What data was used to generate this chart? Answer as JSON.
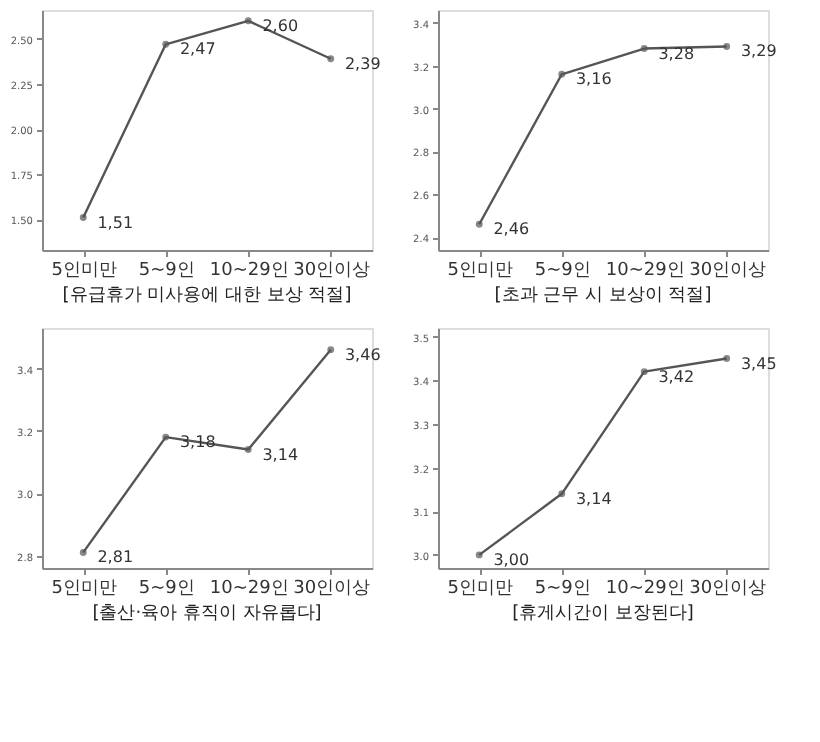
{
  "chart_data": [
    {
      "type": "line",
      "title": "[유급휴가 미사용에 대한 보상 적절]",
      "categories": [
        "5인미만",
        "5~9인",
        "10~29인",
        "30인이상"
      ],
      "color": "#555555",
      "marker": "circle",
      "grid": false,
      "values": [
        1.51,
        2.47,
        2.6,
        2.39
      ],
      "value_labels": [
        "1,51",
        "2,47",
        "2,60",
        "2,39"
      ],
      "ylim": [
        1.33,
        2.66
      ],
      "yticks": [
        {
          "value": 1.5,
          "label": "1.50"
        },
        {
          "value": 1.75,
          "label": "1.75"
        },
        {
          "value": 2.0,
          "label": "2.00"
        },
        {
          "value": 2.25,
          "label": "2.25"
        },
        {
          "value": 2.5,
          "label": "2.50"
        }
      ]
    },
    {
      "type": "line",
      "title": "[초과 근무 시 보상이 적절]",
      "categories": [
        "5인미만",
        "5~9인",
        "10~29인",
        "30인이상"
      ],
      "color": "#555555",
      "marker": "circle",
      "grid": false,
      "values": [
        2.46,
        3.16,
        3.28,
        3.29
      ],
      "value_labels": [
        "2,46",
        "3,16",
        "3,28",
        "3,29"
      ],
      "ylim": [
        2.34,
        3.46
      ],
      "yticks": [
        2.4,
        2.6,
        2.8,
        {
          "value": 3.0,
          "label": "3.0"
        },
        3.2,
        3.4
      ]
    },
    {
      "type": "line",
      "title": "[출산·육아 휴직이 자유롭다]",
      "categories": [
        "5인미만",
        "5~9인",
        "10~29인",
        "30인이상"
      ],
      "color": "#555555",
      "marker": "circle",
      "grid": false,
      "values": [
        2.81,
        3.18,
        3.14,
        3.46
      ],
      "value_labels": [
        "2,81",
        "3,18",
        "3,14",
        "3,46"
      ],
      "ylim": [
        2.76,
        3.53
      ],
      "yticks": [
        2.8,
        {
          "value": 3.0,
          "label": "3.0"
        },
        3.2,
        3.4
      ]
    },
    {
      "type": "line",
      "title": "[휴게시간이 보장된다]",
      "categories": [
        "5인미만",
        "5~9인",
        "10~29인",
        "30인이상"
      ],
      "color": "#555555",
      "marker": "circle",
      "grid": false,
      "values": [
        3.0,
        3.14,
        3.42,
        3.45
      ],
      "value_labels": [
        "3,00",
        "3,14",
        "3,42",
        "3,45"
      ],
      "ylim": [
        2.97,
        3.52
      ],
      "yticks": [
        {
          "value": 3.0,
          "label": "3.0"
        },
        3.1,
        3.2,
        3.3,
        3.4,
        3.5
      ]
    }
  ]
}
